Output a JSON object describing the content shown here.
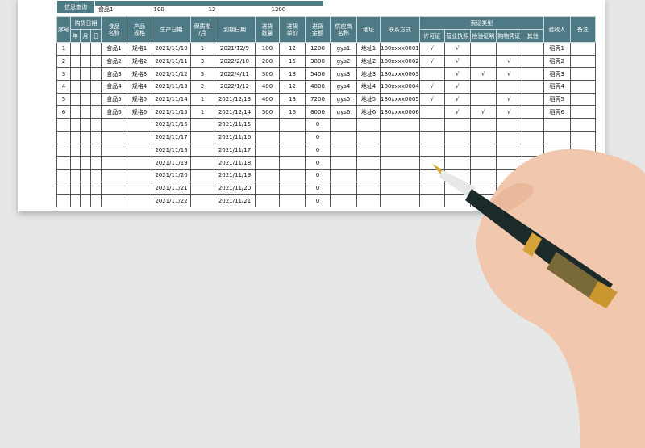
{
  "info_query": {
    "label": "信息查询",
    "values": [
      "食品1",
      "100",
      "12",
      "1200"
    ]
  },
  "headers": {
    "seq": "序号",
    "purchase_date": "购货日期",
    "year": "年",
    "month": "月",
    "day": "日",
    "food_name": "食品\n名称",
    "spec": "产品\n规格",
    "prod_date": "生产日期",
    "shelf": "保质期\n/月",
    "expiry": "到期日期",
    "qty": "进货\n数量",
    "price": "进货\n单价",
    "amount": "进货\n金额",
    "supplier": "供应商\n名称",
    "address": "地址",
    "contact": "联系方式",
    "cert_type": "索证类型",
    "certs": [
      "许可证",
      "营业执照",
      "检验证明",
      "购物凭证",
      "其他"
    ],
    "receiver": "验收人",
    "note": "备注"
  },
  "rows": [
    {
      "seq": "1",
      "food": "食品1",
      "spec": "规格1",
      "prod": "2021/11/10",
      "shelf": "1",
      "expiry": "2021/12/9",
      "qty": "100",
      "price": "12",
      "amount": "1200",
      "supplier": "gys1",
      "address": "地址1",
      "contact": "180xxxx0001",
      "certs": [
        "√",
        "√",
        "",
        "",
        ""
      ],
      "receiver": "稻壳1"
    },
    {
      "seq": "2",
      "food": "食品2",
      "spec": "规格2",
      "prod": "2021/11/11",
      "shelf": "3",
      "expiry": "2022/2/10",
      "qty": "200",
      "price": "15",
      "amount": "3000",
      "supplier": "gys2",
      "address": "地址2",
      "contact": "180xxxx0002",
      "certs": [
        "√",
        "√",
        "",
        "√",
        ""
      ],
      "receiver": "稻壳2"
    },
    {
      "seq": "3",
      "food": "食品3",
      "spec": "规格3",
      "prod": "2021/11/12",
      "shelf": "5",
      "expiry": "2022/4/11",
      "qty": "300",
      "price": "18",
      "amount": "5400",
      "supplier": "gys3",
      "address": "地址3",
      "contact": "180xxxx0003",
      "certs": [
        "",
        "√",
        "√",
        "√",
        ""
      ],
      "receiver": "稻壳3"
    },
    {
      "seq": "4",
      "food": "食品4",
      "spec": "规格4",
      "prod": "2021/11/13",
      "shelf": "2",
      "expiry": "2022/1/12",
      "qty": "400",
      "price": "12",
      "amount": "4800",
      "supplier": "gys4",
      "address": "地址4",
      "contact": "180xxxx0004",
      "certs": [
        "√",
        "√",
        "",
        "",
        ""
      ],
      "receiver": "稻壳4"
    },
    {
      "seq": "5",
      "food": "食品5",
      "spec": "规格5",
      "prod": "2021/11/14",
      "shelf": "1",
      "expiry": "2021/12/13",
      "qty": "400",
      "price": "18",
      "amount": "7200",
      "supplier": "gys5",
      "address": "地址5",
      "contact": "180xxxx0005",
      "certs": [
        "√",
        "√",
        "",
        "√",
        ""
      ],
      "receiver": "稻壳5"
    },
    {
      "seq": "6",
      "food": "食品6",
      "spec": "规格6",
      "prod": "2021/11/15",
      "shelf": "1",
      "expiry": "2021/12/14",
      "qty": "500",
      "price": "16",
      "amount": "8000",
      "supplier": "gys6",
      "address": "地址6",
      "contact": "180xxxx0006",
      "certs": [
        "",
        "√",
        "√",
        "√",
        ""
      ],
      "receiver": "稻壳6"
    },
    {
      "prod": "2021/11/16",
      "expiry": "2021/11/15",
      "amount": "0"
    },
    {
      "prod": "2021/11/17",
      "expiry": "2021/11/16",
      "amount": "0"
    },
    {
      "prod": "2021/11/18",
      "expiry": "2021/11/17",
      "amount": "0"
    },
    {
      "prod": "2021/11/19",
      "expiry": "2021/11/18",
      "amount": "0"
    },
    {
      "prod": "2021/11/20",
      "expiry": "2021/11/19",
      "amount": "0"
    },
    {
      "prod": "2021/11/21",
      "expiry": "2021/11/20",
      "amount": "0"
    },
    {
      "prod": "2021/11/22",
      "expiry": "2021/11/21",
      "amount": "0"
    }
  ],
  "colors": {
    "header": "#4e7a85",
    "background": "#e6e7e7"
  }
}
